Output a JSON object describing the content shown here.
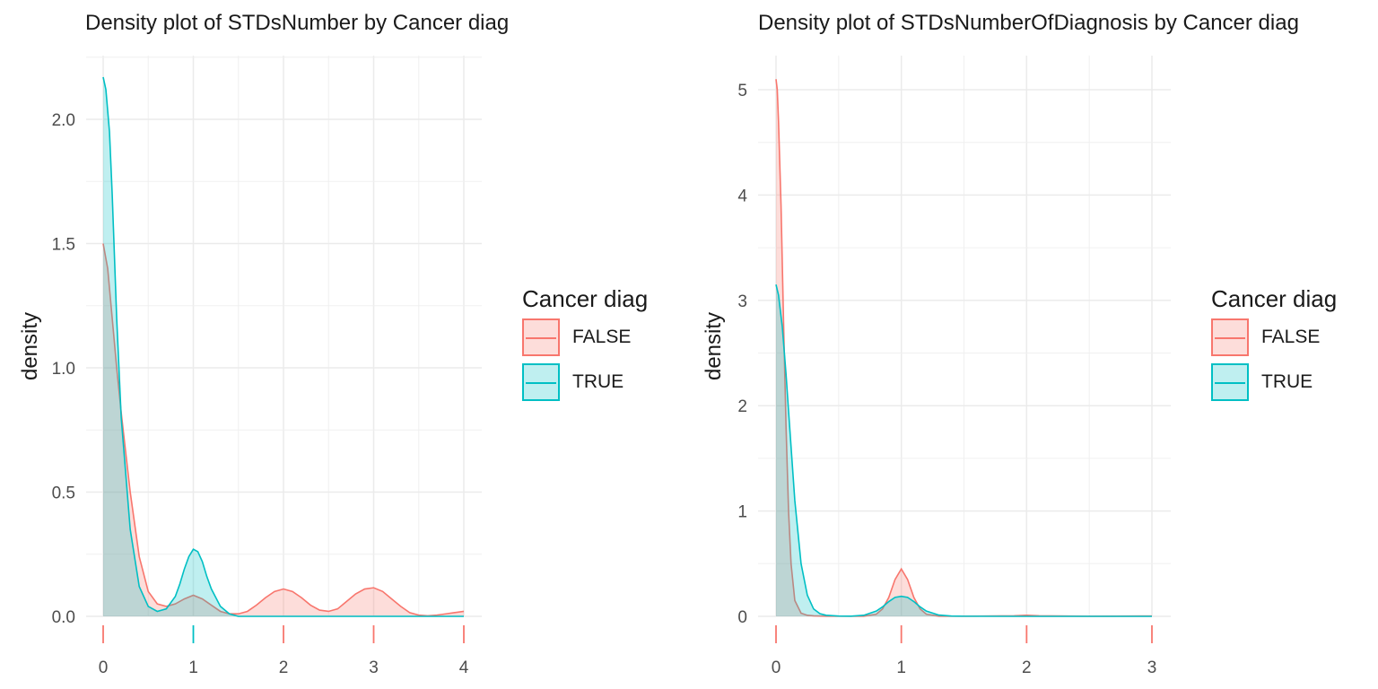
{
  "chart_data": [
    {
      "type": "area",
      "title": "Density plot of STDsNumber by Cancer diag",
      "xlabel": "",
      "ylabel": "density",
      "xlim": [
        0,
        4
      ],
      "ylim": [
        0,
        2.25
      ],
      "x_ticks": [
        "0",
        "1",
        "2",
        "3",
        "4"
      ],
      "y_ticks": [
        "0.0",
        "0.5",
        "1.0",
        "1.5",
        "2.0"
      ],
      "grid": true,
      "legend": {
        "title": "Cancer diag",
        "placement": "right",
        "entries": [
          "FALSE",
          "TRUE"
        ]
      },
      "series": [
        {
          "name": "FALSE",
          "color": "#F8766D",
          "x": [
            0,
            0.05,
            0.1,
            0.15,
            0.2,
            0.3,
            0.4,
            0.5,
            0.6,
            0.7,
            0.8,
            0.9,
            1.0,
            1.1,
            1.2,
            1.3,
            1.4,
            1.5,
            1.6,
            1.7,
            1.8,
            1.9,
            2.0,
            2.1,
            2.2,
            2.3,
            2.4,
            2.5,
            2.6,
            2.7,
            2.8,
            2.9,
            3.0,
            3.1,
            3.2,
            3.3,
            3.4,
            3.5,
            3.6,
            3.7,
            3.8,
            3.9,
            4.0
          ],
          "y": [
            1.5,
            1.4,
            1.2,
            1.0,
            0.82,
            0.5,
            0.24,
            0.1,
            0.05,
            0.04,
            0.05,
            0.07,
            0.085,
            0.07,
            0.045,
            0.02,
            0.01,
            0.01,
            0.02,
            0.045,
            0.075,
            0.1,
            0.11,
            0.1,
            0.075,
            0.045,
            0.025,
            0.02,
            0.03,
            0.06,
            0.09,
            0.11,
            0.115,
            0.1,
            0.07,
            0.04,
            0.015,
            0.005,
            0.002,
            0.005,
            0.01,
            0.015,
            0.02
          ]
        },
        {
          "name": "TRUE",
          "color": "#00BFC4",
          "x": [
            0,
            0.03,
            0.07,
            0.1,
            0.15,
            0.2,
            0.3,
            0.4,
            0.5,
            0.6,
            0.7,
            0.8,
            0.85,
            0.9,
            0.95,
            1.0,
            1.05,
            1.1,
            1.15,
            1.2,
            1.3,
            1.4,
            1.5,
            1.6,
            1.7,
            2.0,
            3.0,
            4.0
          ],
          "y": [
            2.17,
            2.12,
            1.95,
            1.7,
            1.2,
            0.8,
            0.35,
            0.12,
            0.04,
            0.02,
            0.03,
            0.08,
            0.13,
            0.19,
            0.24,
            0.27,
            0.26,
            0.22,
            0.16,
            0.11,
            0.04,
            0.01,
            0.0,
            0.0,
            0.0,
            0.0,
            0.0,
            0.0
          ]
        }
      ],
      "rug": [
        {
          "x": 0,
          "series": "both"
        },
        {
          "x": 1,
          "series": "TRUE"
        },
        {
          "x": 2,
          "series": "FALSE"
        },
        {
          "x": 3,
          "series": "FALSE"
        },
        {
          "x": 4,
          "series": "FALSE"
        }
      ]
    },
    {
      "type": "area",
      "title": "Density plot of STDsNumberOfDiagnosis by Cancer diag",
      "xlabel": "",
      "ylabel": "density",
      "xlim": [
        0,
        3
      ],
      "ylim": [
        0,
        5.3
      ],
      "x_ticks": [
        "0",
        "1",
        "2",
        "3"
      ],
      "y_ticks": [
        "0",
        "1",
        "2",
        "3",
        "4",
        "5"
      ],
      "grid": true,
      "legend": {
        "title": "Cancer diag",
        "placement": "right",
        "entries": [
          "FALSE",
          "TRUE"
        ]
      },
      "series": [
        {
          "name": "FALSE",
          "color": "#F8766D",
          "x": [
            0,
            0.01,
            0.02,
            0.04,
            0.06,
            0.08,
            0.1,
            0.12,
            0.15,
            0.2,
            0.25,
            0.3,
            0.4,
            0.5,
            0.7,
            0.8,
            0.85,
            0.9,
            0.95,
            1.0,
            1.05,
            1.1,
            1.15,
            1.2,
            1.3,
            1.5,
            1.9,
            2.0,
            2.1,
            2.5,
            2.9,
            3.0
          ],
          "y": [
            5.1,
            5.0,
            4.7,
            3.9,
            2.8,
            1.8,
            1.0,
            0.5,
            0.15,
            0.03,
            0.01,
            0.005,
            0.002,
            0.001,
            0.002,
            0.02,
            0.07,
            0.18,
            0.35,
            0.45,
            0.35,
            0.18,
            0.07,
            0.02,
            0.002,
            0.001,
            0.005,
            0.01,
            0.005,
            0.001,
            0.003,
            0.003
          ]
        },
        {
          "name": "TRUE",
          "color": "#00BFC4",
          "x": [
            0,
            0.02,
            0.05,
            0.08,
            0.1,
            0.15,
            0.2,
            0.25,
            0.3,
            0.35,
            0.4,
            0.5,
            0.6,
            0.7,
            0.8,
            0.85,
            0.9,
            0.95,
            1.0,
            1.05,
            1.1,
            1.15,
            1.2,
            1.3,
            1.4,
            1.5,
            2.0,
            3.0
          ],
          "y": [
            3.15,
            3.05,
            2.75,
            2.3,
            1.95,
            1.1,
            0.5,
            0.2,
            0.07,
            0.025,
            0.01,
            0.003,
            0.002,
            0.01,
            0.05,
            0.09,
            0.14,
            0.18,
            0.19,
            0.18,
            0.14,
            0.09,
            0.05,
            0.012,
            0.003,
            0.001,
            0.0,
            0.0
          ]
        }
      ],
      "rug": [
        {
          "x": 0,
          "series": "FALSE"
        },
        {
          "x": 1,
          "series": "FALSE"
        },
        {
          "x": 2,
          "series": "FALSE"
        },
        {
          "x": 3,
          "series": "FALSE"
        }
      ]
    }
  ]
}
